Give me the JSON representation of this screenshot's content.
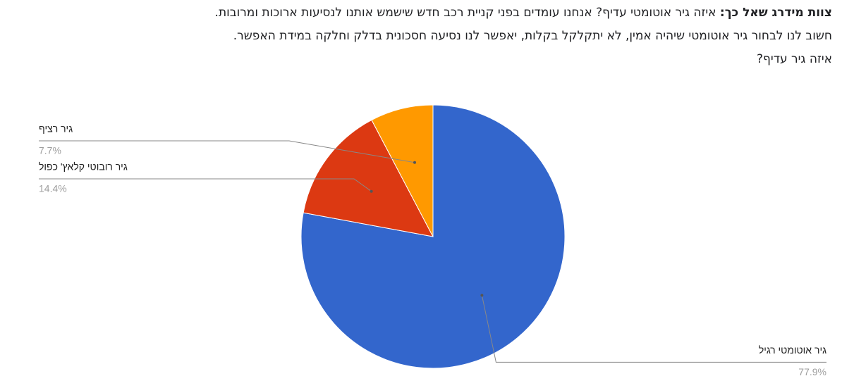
{
  "chart_data": {
    "type": "pie",
    "title": {
      "lead": "צוות מידרג שאל כך:",
      "lines": [
        "איזה גיר אוטומטי עדיף? אנחנו עומדים בפני קניית רכב חדש שישמש אותנו לנסיעות ארוכות ומרובות.",
        "חשוב לנו לבחור גיר אוטומטי שיהיה אמין, לא יתקלקל בקלות, יאפשר לנו נסיעה חסכונית בדלק וחלקה במידת האפשר.",
        "איזה גיר עדיף?"
      ]
    },
    "categories": [
      "גיר אוטומטי רגיל",
      "גיר רובוטי קלאץ' כפול",
      "גיר רציף"
    ],
    "values": [
      77.9,
      14.4,
      7.7
    ],
    "value_labels": [
      "77.9%",
      "14.4%",
      "7.7%"
    ],
    "colors": [
      "#3366cc",
      "#dc3912",
      "#ff9900"
    ]
  }
}
